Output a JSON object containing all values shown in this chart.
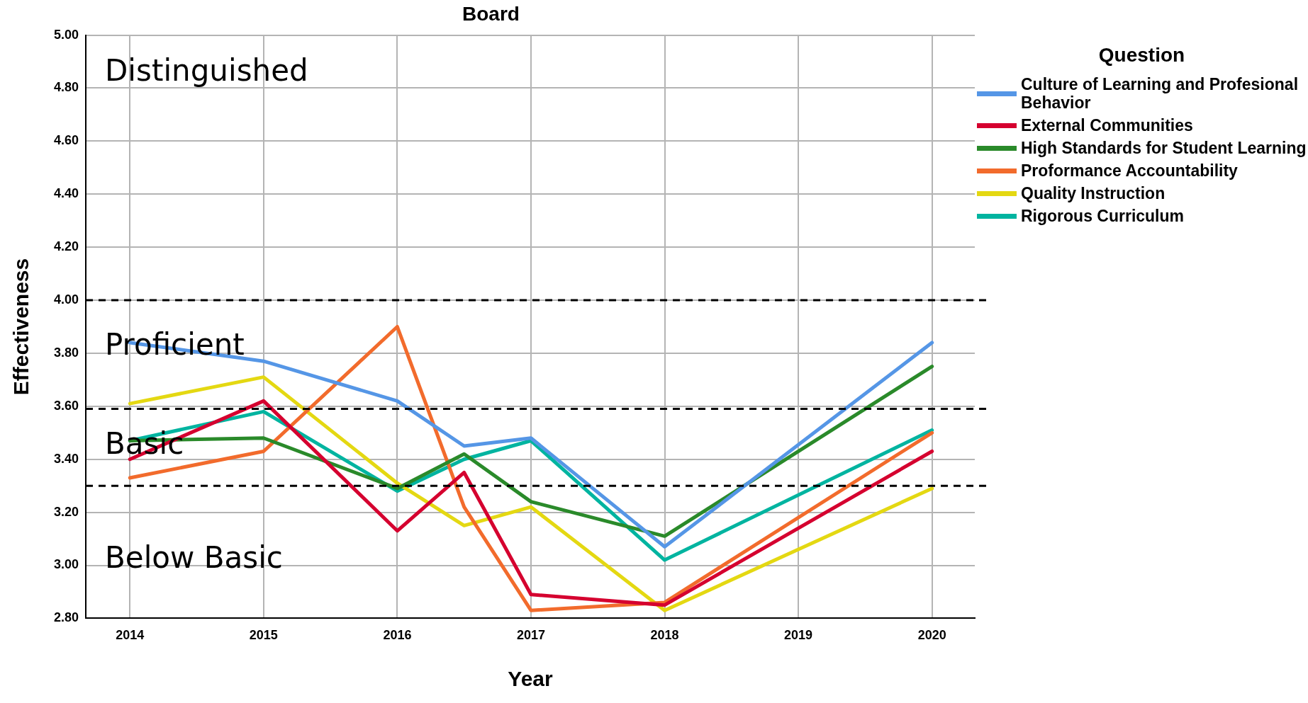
{
  "chart_data": {
    "type": "line",
    "title": "Board",
    "xlabel": "Year",
    "ylabel": "Effectiveness",
    "legend_title": "Question",
    "x": [
      2014,
      2015,
      2016,
      2016.5,
      2017,
      2018,
      2020
    ],
    "xlim": [
      2013.67,
      2020.32
    ],
    "xticks": [
      2014,
      2015,
      2016,
      2017,
      2018,
      2019,
      2020
    ],
    "ylim": [
      2.8,
      5.0
    ],
    "yticks": [
      {
        "value": 2.8,
        "label": "2.80"
      },
      {
        "value": 3.0,
        "label": "3.00"
      },
      {
        "value": 3.2,
        "label": "3.20"
      },
      {
        "value": 3.4,
        "label": "3.40"
      },
      {
        "value": 3.6,
        "label": "3.60"
      },
      {
        "value": 3.8,
        "label": "3.80"
      },
      {
        "value": 4.0,
        "label": "4.00"
      },
      {
        "value": 4.2,
        "label": "4.20"
      },
      {
        "value": 4.4,
        "label": "4.40"
      },
      {
        "value": 4.6,
        "label": "4.60"
      },
      {
        "value": 4.8,
        "label": "4.80"
      },
      {
        "value": 5.0,
        "label": "5.00"
      }
    ],
    "grid": true,
    "legend": "right",
    "marker": "none",
    "line_style": "solid",
    "series": [
      {
        "name": "Culture of Learning and Profesional Behavior",
        "color": "#5596e6",
        "values": [
          3.84,
          3.77,
          3.62,
          3.45,
          3.48,
          3.07,
          3.84
        ]
      },
      {
        "name": "External Communities",
        "color": "#d5002f",
        "values": [
          3.4,
          3.62,
          3.13,
          3.35,
          2.89,
          2.85,
          3.43
        ]
      },
      {
        "name": "High Standards for Student Learning",
        "color": "#2a8a2a",
        "values": [
          3.47,
          3.48,
          3.29,
          3.42,
          3.24,
          3.11,
          3.75
        ]
      },
      {
        "name": "Proformance Accountability",
        "color": "#f26b2c",
        "values": [
          3.33,
          3.43,
          3.9,
          3.22,
          2.83,
          2.86,
          3.5
        ]
      },
      {
        "name": "Quality Instruction",
        "color": "#e4d812",
        "values": [
          3.61,
          3.71,
          3.31,
          3.15,
          3.22,
          2.83,
          3.29
        ]
      },
      {
        "name": "Rigorous Curriculum",
        "color": "#00b4a0",
        "values": [
          3.47,
          3.58,
          3.28,
          3.4,
          3.47,
          3.02,
          3.51
        ]
      }
    ],
    "ref_lines": [
      {
        "axis": "y",
        "value": 4.0,
        "color": "#000000",
        "line_style": "dashed"
      },
      {
        "axis": "y",
        "value": 3.59,
        "color": "#000000",
        "line_style": "dashed"
      },
      {
        "axis": "y",
        "value": 3.3,
        "color": "#000000",
        "line_style": "dashed"
      }
    ],
    "annotations": [
      "Distinguished",
      "Proficient",
      "Basic",
      "Below Basic"
    ]
  }
}
